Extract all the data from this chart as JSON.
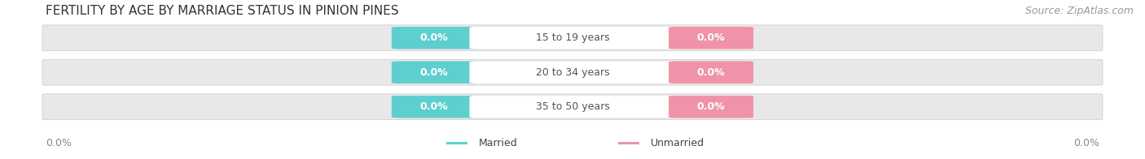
{
  "title": "FERTILITY BY AGE BY MARRIAGE STATUS IN PINION PINES",
  "source": "Source: ZipAtlas.com",
  "categories": [
    "15 to 19 years",
    "20 to 34 years",
    "35 to 50 years"
  ],
  "married_values": [
    "0.0%",
    "0.0%",
    "0.0%"
  ],
  "unmarried_values": [
    "0.0%",
    "0.0%",
    "0.0%"
  ],
  "married_color": "#5ecfcf",
  "unmarried_color": "#f093a8",
  "bar_bg_color": "#e8e8e8",
  "bar_bg_color2": "#f0f0f0",
  "title_fontsize": 11,
  "source_fontsize": 9,
  "label_fontsize": 9,
  "badge_fontsize": 9,
  "axis_label_fontsize": 9,
  "background_color": "#ffffff",
  "category_color": "#555555",
  "axis_value_color": "#888888",
  "left_axis_label": "0.0%",
  "right_axis_label": "0.0%"
}
